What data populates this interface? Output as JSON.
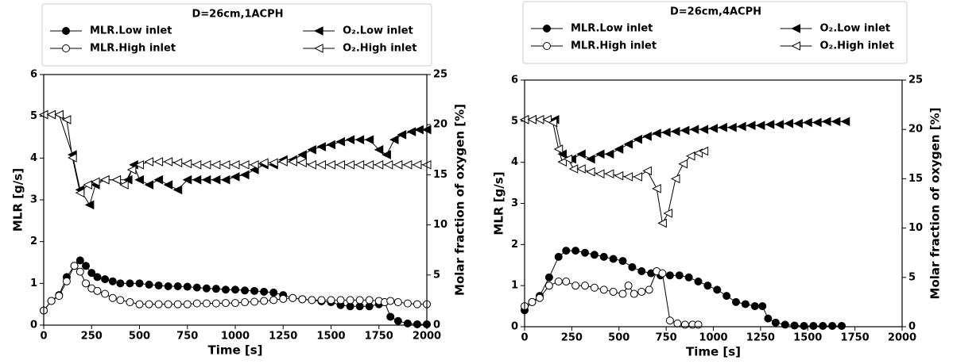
{
  "chart_data": [
    {
      "type": "line",
      "legend_title": "D=26cm,1ACPH",
      "xlabel": "Time [s]",
      "ylabel": "MLR [g/s]",
      "y2label": "Molar fraction of oxygen [%]",
      "xlim": [
        0,
        2000
      ],
      "xticks": [
        0,
        250,
        500,
        750,
        1000,
        1250,
        1500,
        1750,
        2000
      ],
      "ylim": [
        0,
        6
      ],
      "yticks": [
        0,
        1,
        2,
        3,
        4,
        5,
        6
      ],
      "y2lim": [
        0,
        25
      ],
      "y2ticks": [
        0,
        5,
        10,
        15,
        20,
        25
      ],
      "series": [
        {
          "name": "MLR.Low inlet",
          "color": "#000000",
          "marker": "circle",
          "filled": true,
          "x": [
            0,
            40,
            80,
            120,
            160,
            190,
            220,
            250,
            280,
            320,
            360,
            400,
            450,
            500,
            550,
            600,
            650,
            700,
            750,
            800,
            850,
            900,
            950,
            1000,
            1050,
            1100,
            1150,
            1200,
            1250,
            1300,
            1350,
            1400,
            1450,
            1500,
            1550,
            1600,
            1650,
            1700,
            1750,
            1780,
            1810,
            1850,
            1900,
            1950,
            2000
          ],
          "values": [
            0.35,
            0.58,
            0.72,
            1.15,
            1.42,
            1.55,
            1.42,
            1.25,
            1.15,
            1.1,
            1.05,
            1.0,
            1.0,
            1.0,
            0.97,
            0.95,
            0.93,
            0.93,
            0.92,
            0.9,
            0.88,
            0.87,
            0.85,
            0.85,
            0.83,
            0.82,
            0.8,
            0.78,
            0.72,
            0.65,
            0.62,
            0.6,
            0.57,
            0.55,
            0.48,
            0.45,
            0.45,
            0.45,
            0.5,
            0.55,
            0.2,
            0.1,
            0.04,
            0.02,
            0.02
          ]
        },
        {
          "name": "MLR.High inlet",
          "color": "#000000",
          "marker": "circle",
          "filled": false,
          "x": [
            0,
            40,
            80,
            120,
            160,
            190,
            220,
            250,
            280,
            320,
            360,
            400,
            450,
            500,
            550,
            600,
            650,
            700,
            750,
            800,
            850,
            900,
            950,
            1000,
            1050,
            1100,
            1150,
            1200,
            1250,
            1300,
            1350,
            1400,
            1450,
            1500,
            1550,
            1600,
            1650,
            1700,
            1750,
            1780,
            1810,
            1850,
            1900,
            1950,
            2000
          ],
          "values": [
            0.35,
            0.58,
            0.7,
            1.05,
            1.42,
            1.28,
            1.0,
            0.88,
            0.82,
            0.75,
            0.65,
            0.6,
            0.55,
            0.5,
            0.5,
            0.5,
            0.5,
            0.5,
            0.5,
            0.52,
            0.52,
            0.52,
            0.53,
            0.53,
            0.55,
            0.56,
            0.58,
            0.6,
            0.63,
            0.65,
            0.62,
            0.6,
            0.6,
            0.6,
            0.6,
            0.6,
            0.6,
            0.6,
            0.58,
            0.55,
            0.58,
            0.55,
            0.52,
            0.5,
            0.5
          ]
        },
        {
          "name": "O₂.Low inlet",
          "color": "#000000",
          "marker": "triangle-left",
          "filled": true,
          "axis": "y2",
          "x": [
            0,
            40,
            80,
            150,
            190,
            240,
            270,
            320,
            380,
            440,
            470,
            500,
            550,
            600,
            650,
            700,
            750,
            800,
            850,
            900,
            950,
            1000,
            1050,
            1100,
            1150,
            1200,
            1250,
            1300,
            1350,
            1400,
            1450,
            1500,
            1550,
            1600,
            1650,
            1700,
            1750,
            1790,
            1830,
            1870,
            1920,
            1960,
            2000
          ],
          "values": [
            21,
            21,
            21,
            17,
            13.5,
            12,
            14,
            14.5,
            14.5,
            14.5,
            16,
            14.5,
            14,
            14.5,
            14,
            13.5,
            14.5,
            14.5,
            14.5,
            14.5,
            14.5,
            14.8,
            15,
            15.5,
            16,
            16,
            16.5,
            16.5,
            17,
            17.5,
            17.8,
            18,
            18.3,
            18.5,
            18.5,
            18.5,
            17.5,
            17,
            18.5,
            19,
            19.3,
            19.5,
            19.5
          ]
        },
        {
          "name": "O₂.High inlet",
          "color": "#000000",
          "marker": "triangle-left",
          "filled": false,
          "axis": "y2",
          "x": [
            0,
            40,
            80,
            120,
            150,
            190,
            230,
            270,
            320,
            380,
            420,
            460,
            500,
            550,
            600,
            650,
            700,
            750,
            800,
            850,
            900,
            950,
            1000,
            1050,
            1100,
            1150,
            1200,
            1250,
            1300,
            1350,
            1400,
            1450,
            1500,
            1550,
            1600,
            1650,
            1700,
            1750,
            1800,
            1850,
            1900,
            1950,
            2000
          ],
          "values": [
            21,
            21,
            21,
            20.5,
            16.7,
            13.2,
            14,
            14.3,
            14.5,
            14.5,
            14,
            15.5,
            16,
            16.3,
            16.3,
            16.3,
            16.2,
            16.1,
            16,
            16,
            16,
            16,
            16,
            16,
            16,
            16.2,
            16.2,
            16.3,
            16.3,
            16.2,
            16,
            16,
            16,
            16,
            16,
            16,
            16,
            16,
            16,
            16,
            16,
            16,
            16
          ]
        }
      ]
    },
    {
      "type": "line",
      "legend_title": "D=26cm,4ACPH",
      "xlabel": "Time [s]",
      "ylabel": "MLR [g/s]",
      "y2label": "Molar fraction of oxygen [%]",
      "xlim": [
        0,
        2000
      ],
      "xticks": [
        0,
        250,
        500,
        750,
        1000,
        1250,
        1500,
        1750,
        2000
      ],
      "ylim": [
        0,
        6
      ],
      "yticks": [
        0,
        1,
        2,
        3,
        4,
        5,
        6
      ],
      "y2lim": [
        0,
        25
      ],
      "y2ticks": [
        0,
        5,
        10,
        15,
        20,
        25
      ],
      "series": [
        {
          "name": "MLR.Low inlet",
          "color": "#000000",
          "marker": "circle",
          "filled": true,
          "x": [
            0,
            40,
            80,
            130,
            180,
            220,
            270,
            320,
            370,
            420,
            470,
            520,
            570,
            620,
            670,
            720,
            770,
            820,
            870,
            920,
            970,
            1020,
            1070,
            1120,
            1170,
            1220,
            1260,
            1290,
            1330,
            1380,
            1430,
            1480,
            1530,
            1580,
            1630,
            1680
          ],
          "values": [
            0.4,
            0.6,
            0.75,
            1.2,
            1.7,
            1.85,
            1.85,
            1.8,
            1.75,
            1.7,
            1.65,
            1.6,
            1.45,
            1.35,
            1.3,
            1.25,
            1.25,
            1.25,
            1.2,
            1.1,
            1.0,
            0.9,
            0.75,
            0.6,
            0.55,
            0.5,
            0.5,
            0.2,
            0.1,
            0.05,
            0.03,
            0.02,
            0.02,
            0.02,
            0.02,
            0.02
          ]
        },
        {
          "name": "MLR.High inlet",
          "color": "#000000",
          "marker": "circle",
          "filled": false,
          "x": [
            0,
            40,
            80,
            130,
            180,
            220,
            270,
            320,
            370,
            420,
            470,
            520,
            550,
            580,
            620,
            660,
            700,
            730,
            770,
            810,
            850,
            890,
            920
          ],
          "values": [
            0.5,
            0.6,
            0.7,
            1.0,
            1.1,
            1.1,
            1.0,
            1.0,
            0.95,
            0.9,
            0.85,
            0.8,
            1.0,
            0.8,
            0.85,
            0.9,
            1.35,
            1.3,
            0.15,
            0.08,
            0.05,
            0.05,
            0.05
          ]
        },
        {
          "name": "O₂.Low inlet",
          "color": "#000000",
          "marker": "triangle-left",
          "filled": true,
          "axis": "y2",
          "x": [
            0,
            40,
            80,
            120,
            160,
            200,
            250,
            300,
            350,
            400,
            450,
            500,
            550,
            600,
            650,
            700,
            750,
            800,
            850,
            900,
            950,
            1000,
            1050,
            1100,
            1150,
            1200,
            1250,
            1300,
            1350,
            1400,
            1450,
            1500,
            1550,
            1600,
            1650,
            1700
          ],
          "values": [
            21,
            21,
            21,
            21,
            21,
            17.5,
            17,
            17.5,
            17,
            17.5,
            17.5,
            18,
            18.5,
            19,
            19.3,
            19.6,
            19.7,
            19.8,
            19.9,
            20,
            20,
            20.1,
            20.2,
            20.2,
            20.3,
            20.4,
            20.4,
            20.5,
            20.5,
            20.6,
            20.6,
            20.7,
            20.7,
            20.8,
            20.8,
            20.8
          ]
        },
        {
          "name": "O₂.High inlet",
          "color": "#000000",
          "marker": "triangle-left",
          "filled": false,
          "axis": "y2",
          "x": [
            0,
            40,
            80,
            120,
            150,
            180,
            200,
            230,
            260,
            300,
            350,
            400,
            450,
            500,
            550,
            600,
            650,
            700,
            730,
            760,
            800,
            840,
            880,
            920,
            950
          ],
          "values": [
            21,
            21,
            21,
            21,
            20.7,
            18,
            16.7,
            17,
            16,
            16,
            15.7,
            15.5,
            15.5,
            15.3,
            15.2,
            15.2,
            15.8,
            14,
            10.5,
            11.5,
            15,
            16.5,
            17.3,
            17.6,
            17.8
          ]
        }
      ]
    }
  ]
}
